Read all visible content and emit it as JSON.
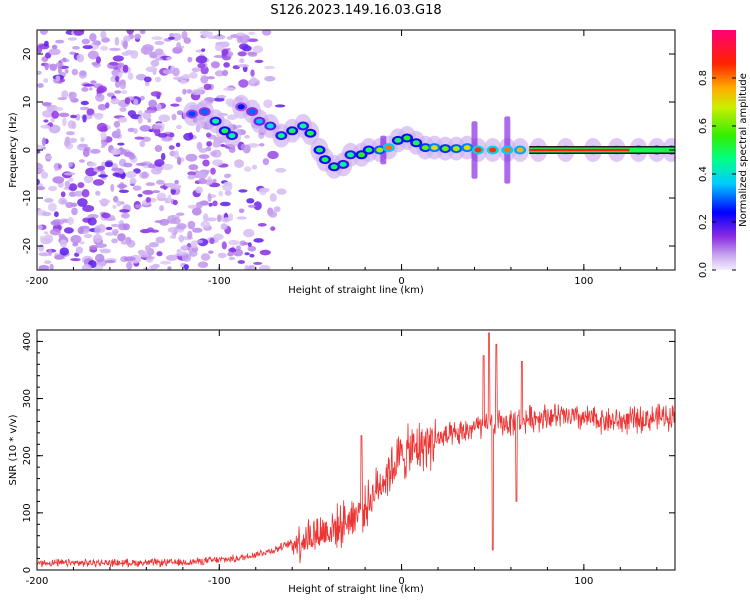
{
  "title": "S126.2023.149.16.03.G18",
  "chart_data": [
    {
      "type": "heatmap",
      "name": "spectrogram",
      "xlabel": "Height of straight line (km)",
      "ylabel": "Frequency (Hz)",
      "xlim": [
        -200,
        150
      ],
      "ylim": [
        -25,
        25
      ],
      "x_ticks": [
        -200,
        -100,
        0,
        100
      ],
      "y_ticks": [
        -20,
        -10,
        0,
        10,
        20
      ],
      "noise_region_x": [
        -200,
        -78
      ],
      "track": [
        {
          "x": -115,
          "y": 7.5,
          "v": 0.28
        },
        {
          "x": -108,
          "y": 8,
          "v": 0.3
        },
        {
          "x": -102,
          "y": 6,
          "v": 0.45
        },
        {
          "x": -97,
          "y": 4,
          "v": 0.5
        },
        {
          "x": -93,
          "y": 3,
          "v": 0.45
        },
        {
          "x": -88,
          "y": 9,
          "v": 0.25
        },
        {
          "x": -82,
          "y": 8,
          "v": 0.3
        },
        {
          "x": -78,
          "y": 6,
          "v": 0.35
        },
        {
          "x": -72,
          "y": 5,
          "v": 0.4
        },
        {
          "x": -66,
          "y": 3,
          "v": 0.45
        },
        {
          "x": -60,
          "y": 4,
          "v": 0.5
        },
        {
          "x": -54,
          "y": 5,
          "v": 0.45
        },
        {
          "x": -50,
          "y": 3.5,
          "v": 0.5
        },
        {
          "x": -45,
          "y": 0,
          "v": 0.5
        },
        {
          "x": -42,
          "y": -2,
          "v": 0.5
        },
        {
          "x": -37,
          "y": -3.5,
          "v": 0.5
        },
        {
          "x": -32,
          "y": -3,
          "v": 0.45
        },
        {
          "x": -28,
          "y": -1,
          "v": 0.45
        },
        {
          "x": -22,
          "y": -1,
          "v": 0.55
        },
        {
          "x": -18,
          "y": 0,
          "v": 0.5
        },
        {
          "x": -12,
          "y": 0,
          "v": 0.65
        },
        {
          "x": -7,
          "y": 0.5,
          "v": 0.8
        },
        {
          "x": -2,
          "y": 2,
          "v": 0.5
        },
        {
          "x": 3,
          "y": 2.5,
          "v": 0.55
        },
        {
          "x": 8,
          "y": 1.5,
          "v": 0.5
        },
        {
          "x": 13,
          "y": 0.5,
          "v": 0.6
        },
        {
          "x": 18,
          "y": 0.5,
          "v": 0.7
        },
        {
          "x": 24,
          "y": 0.3,
          "v": 0.6
        },
        {
          "x": 30,
          "y": 0.3,
          "v": 0.65
        },
        {
          "x": 36,
          "y": 0.5,
          "v": 0.7
        },
        {
          "x": 42,
          "y": 0,
          "v": 0.85
        },
        {
          "x": 50,
          "y": 0,
          "v": 0.85
        },
        {
          "x": 58,
          "y": 0,
          "v": 0.8
        },
        {
          "x": 65,
          "y": 0,
          "v": 0.75
        },
        {
          "x": 75,
          "y": 0,
          "v": 0.92
        },
        {
          "x": 90,
          "y": 0,
          "v": 0.92
        },
        {
          "x": 105,
          "y": 0,
          "v": 0.9
        },
        {
          "x": 118,
          "y": 0,
          "v": 0.85
        },
        {
          "x": 130,
          "y": 0,
          "v": 0.6
        },
        {
          "x": 140,
          "y": 0,
          "v": 0.5
        },
        {
          "x": 148,
          "y": 0,
          "v": 0.45
        }
      ]
    },
    {
      "type": "line",
      "name": "snr",
      "xlabel": "Height of straight line (km)",
      "ylabel": "SNR (10 * v/v)",
      "xlim": [
        -200,
        150
      ],
      "ylim": [
        0,
        420
      ],
      "x_ticks": [
        -200,
        -100,
        0,
        100
      ],
      "y_ticks": [
        0,
        100,
        200,
        300,
        400
      ],
      "color": "#ee3333",
      "anchors": [
        {
          "x": -200,
          "y": 12
        },
        {
          "x": -120,
          "y": 13
        },
        {
          "x": -90,
          "y": 20
        },
        {
          "x": -70,
          "y": 35
        },
        {
          "x": -50,
          "y": 60
        },
        {
          "x": -35,
          "y": 75
        },
        {
          "x": -20,
          "y": 110
        },
        {
          "x": -10,
          "y": 160
        },
        {
          "x": 0,
          "y": 200
        },
        {
          "x": 10,
          "y": 215
        },
        {
          "x": 20,
          "y": 230
        },
        {
          "x": 30,
          "y": 235
        },
        {
          "x": 40,
          "y": 250
        },
        {
          "x": 50,
          "y": 255
        },
        {
          "x": 60,
          "y": 258
        },
        {
          "x": 70,
          "y": 265
        },
        {
          "x": 80,
          "y": 270
        },
        {
          "x": 100,
          "y": 265
        },
        {
          "x": 120,
          "y": 260
        },
        {
          "x": 150,
          "y": 270
        }
      ],
      "spikes": [
        {
          "x": -22,
          "y": 235
        },
        {
          "x": 45,
          "y": 375
        },
        {
          "x": 48,
          "y": 415
        },
        {
          "x": 50,
          "y": 35
        },
        {
          "x": 52,
          "y": 395
        },
        {
          "x": 63,
          "y": 120
        },
        {
          "x": 66,
          "y": 365
        }
      ]
    }
  ],
  "colorbar": {
    "label": "Normalized spectral amplitude",
    "ticks": [
      0.0,
      0.2,
      0.4,
      0.6,
      0.8
    ],
    "tick_labels": [
      "0.0",
      "0.2",
      "0.4",
      "0.6",
      "0.8"
    ],
    "range": [
      0,
      1
    ]
  }
}
